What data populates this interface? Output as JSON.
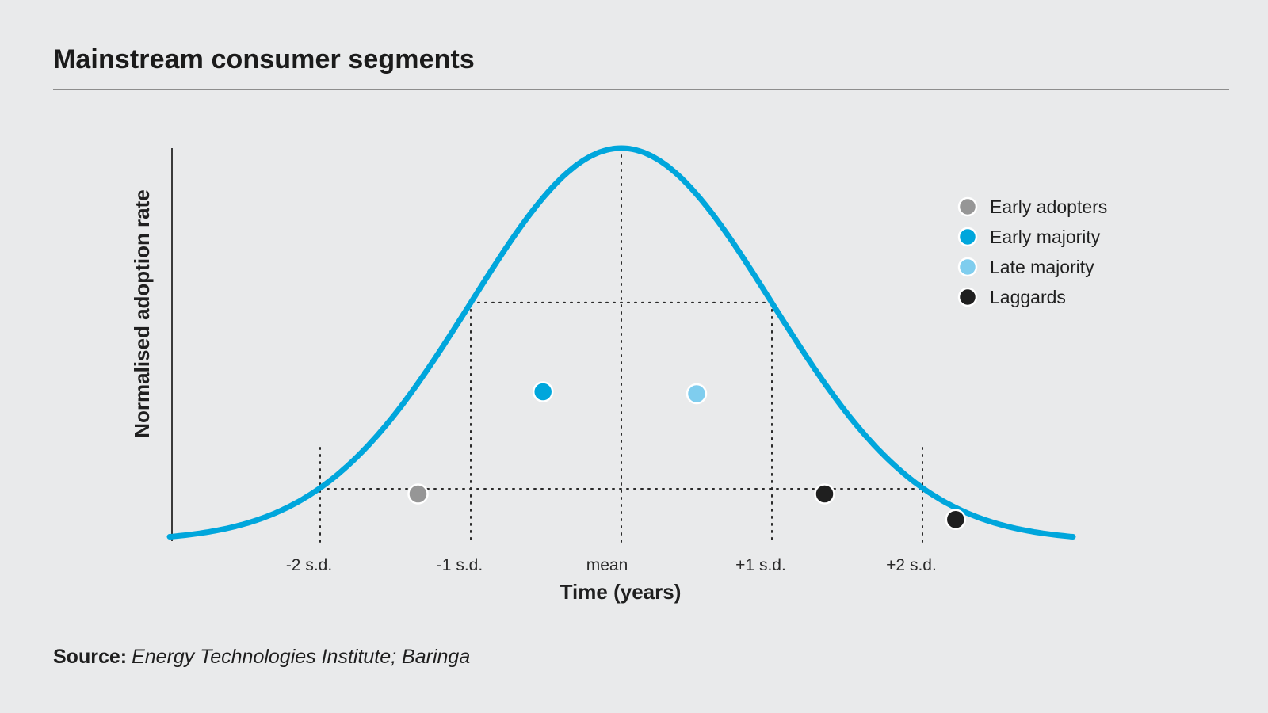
{
  "title": "Mainstream consumer segments",
  "source": {
    "label": "Source:",
    "text": "Energy Technologies Institute; Baringa"
  },
  "chart_data": {
    "type": "line",
    "title": "Mainstream consumer segments",
    "xlabel": "Time (years)",
    "ylabel": "Normalised adoption rate",
    "x_unit": "standard deviations from mean",
    "xlim": [
      -3.0,
      3.0
    ],
    "ylim": [
      0,
      1.0
    ],
    "grid": false,
    "legend_position": "top-right",
    "ticks": [
      {
        "label": "-2 s.d.",
        "x": -2
      },
      {
        "label": "-1 s.d.",
        "x": -1
      },
      {
        "label": "mean",
        "x": 0
      },
      {
        "label": "+1 s.d.",
        "x": 1
      },
      {
        "label": "+2 s.d.",
        "x": 2
      }
    ],
    "curve": {
      "name": "Adoption curve",
      "color": "#00a6dc",
      "distribution": "normal",
      "mean": 0,
      "sd": 1
    },
    "reference_levels": [
      {
        "name": "+/-1 s.d. level",
        "y": 0.607
      },
      {
        "name": "+/-2 s.d. level",
        "y": 0.135
      }
    ],
    "series": [
      {
        "name": "Early adopters",
        "color": "#969696",
        "points": [
          {
            "x": -1.35,
            "y": 0.12
          }
        ]
      },
      {
        "name": "Early majority",
        "color": "#00a6dc",
        "points": [
          {
            "x": -0.52,
            "y": 0.38
          }
        ]
      },
      {
        "name": "Late majority",
        "color": "#7fcdee",
        "points": [
          {
            "x": 0.5,
            "y": 0.375
          }
        ]
      },
      {
        "name": "Laggards",
        "color": "#1f1f1f",
        "points": [
          {
            "x": 1.35,
            "y": 0.12
          },
          {
            "x": 2.22,
            "y": 0.055
          }
        ]
      }
    ]
  }
}
